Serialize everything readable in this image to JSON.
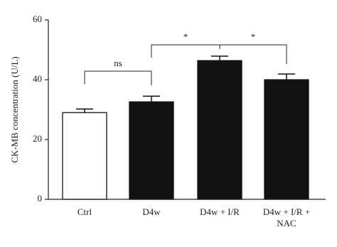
{
  "chart_data": {
    "type": "bar",
    "y_label": "CK-MB concentration (U/L)",
    "categories": [
      "Ctrl",
      "D4w",
      "D4w + I/R",
      "D4w + I/R + NAC"
    ],
    "values": [
      29,
      32.6,
      46.4,
      40
    ],
    "errors": [
      1.2,
      1.9,
      1.5,
      1.9
    ],
    "colors": [
      "#ffffff",
      "#111111",
      "#111111",
      "#111111"
    ],
    "ylim": [
      0,
      60
    ],
    "yticks": [
      0,
      20,
      40,
      60
    ],
    "grid": false,
    "annotations": [
      "ns",
      "*",
      "*"
    ]
  }
}
